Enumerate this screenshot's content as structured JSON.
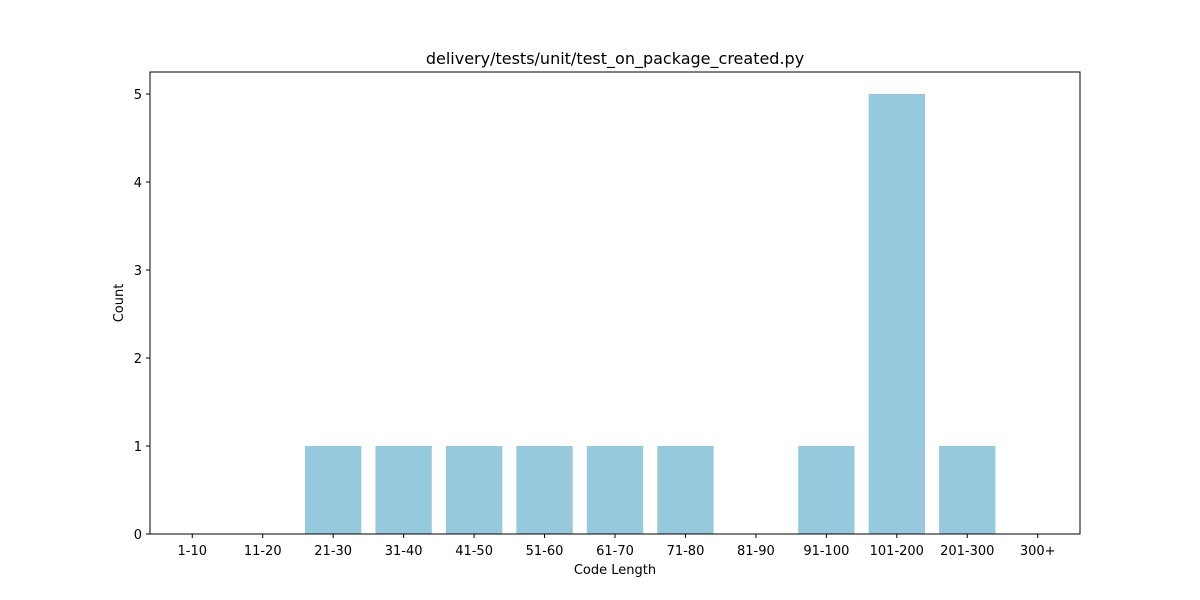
{
  "chart_data": {
    "type": "bar",
    "title": "delivery/tests/unit/test_on_package_created.py",
    "xlabel": "Code Length",
    "ylabel": "Count",
    "categories": [
      "1-10",
      "11-20",
      "21-30",
      "31-40",
      "41-50",
      "51-60",
      "61-70",
      "71-80",
      "81-90",
      "91-100",
      "101-200",
      "201-300",
      "300+"
    ],
    "values": [
      0,
      0,
      1,
      1,
      1,
      1,
      1,
      1,
      0,
      1,
      5,
      1,
      0
    ],
    "ylim": [
      0,
      5.25
    ],
    "yticks": [
      0,
      1,
      2,
      3,
      4,
      5
    ],
    "bar_color": "#96c9dd",
    "grid": false,
    "legend": "none"
  }
}
